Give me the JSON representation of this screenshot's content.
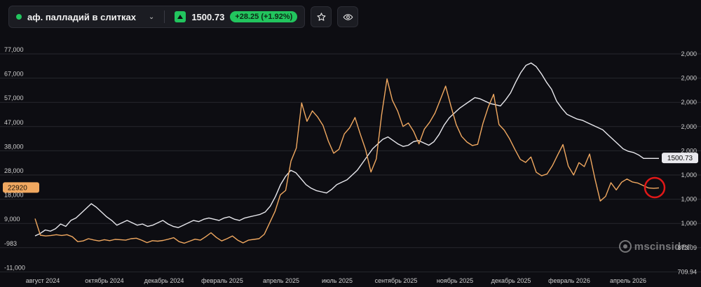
{
  "header": {
    "asset_name": "аф. палладий в слитках",
    "price": "1500.73",
    "change": "+28.25 (+1.92%)",
    "icons": [
      "chevron-down-icon",
      "arrow-up-icon",
      "star-icon",
      "eye-icon"
    ]
  },
  "watermark": "mscinsider",
  "colors": {
    "accent_green": "#22c55e",
    "white_series": "#e9e9ee",
    "orange_series": "#f0a860",
    "highlight_circle": "#e01818"
  },
  "chart_data": {
    "type": "line",
    "title": "",
    "x_labels": [
      "август 2024",
      "октябрь 2024",
      "декабрь 2024",
      "февраль 2025",
      "апрель 2025",
      "июль 2025",
      "сентябрь 2025",
      "ноябрь 2025",
      "декабрь 2025",
      "февраль 2026",
      "апрель 2026"
    ],
    "left_axis_labels": [
      "77,000",
      "67,000",
      "57,000",
      "47,000",
      "38,000",
      "28,000",
      "18,000",
      "9,000",
      "-983",
      "-11,000"
    ],
    "right_axis_labels": [
      "2,000",
      "2,000",
      "2,000",
      "2,000",
      "2,000",
      "1,000",
      "1,000",
      "1,000",
      "873.09",
      "709.94"
    ],
    "left_ylim": [
      -11000,
      77000
    ],
    "current_left_tag": "22920",
    "current_right_tag": "1500.73",
    "grid": true,
    "series": [
      {
        "axis": "right",
        "color": "#e9e9ee",
        "values": [
          850,
          870,
          900,
          890,
          910,
          950,
          930,
          980,
          1000,
          1040,
          1080,
          1120,
          1090,
          1050,
          1010,
          980,
          940,
          960,
          980,
          960,
          940,
          950,
          930,
          940,
          960,
          980,
          950,
          930,
          920,
          940,
          960,
          980,
          970,
          990,
          1000,
          990,
          980,
          1000,
          1010,
          990,
          980,
          1000,
          1010,
          1020,
          1030,
          1050,
          1100,
          1180,
          1280,
          1350,
          1400,
          1380,
          1330,
          1280,
          1250,
          1230,
          1220,
          1210,
          1240,
          1280,
          1300,
          1320,
          1360,
          1400,
          1460,
          1520,
          1580,
          1620,
          1660,
          1680,
          1650,
          1620,
          1600,
          1610,
          1640,
          1650,
          1630,
          1610,
          1640,
          1700,
          1780,
          1840,
          1880,
          1920,
          1950,
          1980,
          2010,
          2000,
          1980,
          1960,
          1950,
          1940,
          1990,
          2050,
          2140,
          2220,
          2280,
          2300,
          2270,
          2210,
          2140,
          2080,
          1980,
          1920,
          1870,
          1850,
          1830,
          1820,
          1800,
          1780,
          1760,
          1740,
          1700,
          1660,
          1620,
          1580,
          1560,
          1550,
          1530,
          1500,
          1500,
          1500,
          1500
        ]
      },
      {
        "axis": "left",
        "color": "#f0a860",
        "values": [
          10500,
          3800,
          3500,
          3700,
          4000,
          3700,
          4000,
          3200,
          1200,
          1500,
          2400,
          1900,
          1500,
          2000,
          1600,
          2100,
          2000,
          1800,
          2400,
          2600,
          1800,
          800,
          1600,
          1400,
          1700,
          2200,
          2800,
          1200,
          600,
          1400,
          2200,
          1800,
          3200,
          4800,
          2900,
          1500,
          2400,
          3500,
          1800,
          700,
          1800,
          2100,
          2400,
          4200,
          8800,
          13400,
          20100,
          21900,
          33700,
          39000,
          57200,
          49800,
          54000,
          51500,
          48100,
          41800,
          36900,
          38500,
          44700,
          47200,
          51300,
          44600,
          38300,
          29300,
          34600,
          52400,
          66900,
          58300,
          53900,
          47700,
          49100,
          45700,
          40700,
          46600,
          49400,
          53100,
          58500,
          64000,
          55900,
          48400,
          43700,
          41400,
          40000,
          40500,
          49000,
          55600,
          60700,
          48500,
          46200,
          42700,
          38400,
          34400,
          33200,
          35400,
          29200,
          27800,
          28500,
          31800,
          36200,
          40400,
          31700,
          28100,
          33100,
          31500,
          36600,
          26600,
          17600,
          19500,
          25000,
          22100,
          25200,
          26500,
          25300,
          24900,
          23900,
          22900,
          22700,
          22920
        ]
      }
    ]
  }
}
